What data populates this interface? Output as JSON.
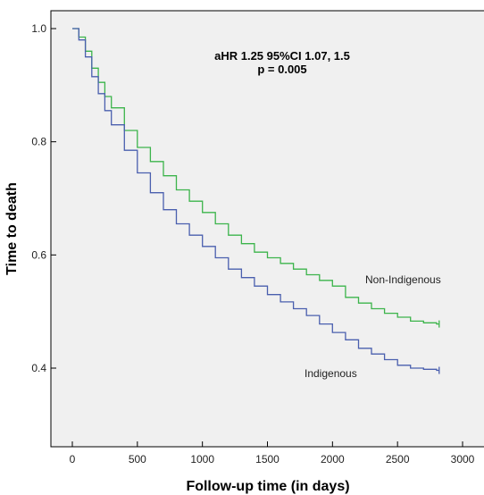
{
  "chart_data": {
    "type": "line",
    "title": "",
    "xlabel": "Follow-up time (in days)",
    "ylabel": "Time to death",
    "xlim": [
      0,
      3000
    ],
    "ylim": [
      0.3,
      1.02
    ],
    "xticks": [
      0,
      500,
      1000,
      1500,
      2000,
      2500,
      3000
    ],
    "yticks": [
      0.4,
      0.6,
      0.8,
      1.0
    ],
    "xtick_labels": [
      "0",
      "500",
      "1000",
      "1500",
      "2000",
      "2500",
      "3000"
    ],
    "ytick_labels": [
      "0.4",
      "0.6",
      "0.8",
      "1.0"
    ],
    "grid": false,
    "annotations": [
      "aHR 1.25 95%CI 1.07, 1.5",
      "p = 0.005"
    ],
    "series": [
      {
        "name": "Non-Indigenous",
        "color": "#3cb44b",
        "step": true,
        "x": [
          0,
          50,
          100,
          150,
          200,
          250,
          300,
          400,
          500,
          600,
          700,
          800,
          900,
          1000,
          1100,
          1200,
          1300,
          1400,
          1500,
          1600,
          1700,
          1800,
          1900,
          2000,
          2100,
          2200,
          2300,
          2400,
          2500,
          2600,
          2700,
          2800
        ],
        "y": [
          1.0,
          0.985,
          0.96,
          0.93,
          0.905,
          0.88,
          0.86,
          0.82,
          0.79,
          0.765,
          0.74,
          0.715,
          0.695,
          0.675,
          0.655,
          0.635,
          0.62,
          0.605,
          0.595,
          0.585,
          0.575,
          0.565,
          0.555,
          0.545,
          0.525,
          0.515,
          0.505,
          0.497,
          0.49,
          0.483,
          0.48,
          0.478
        ]
      },
      {
        "name": "Indigenous",
        "color": "#4a5fae",
        "step": true,
        "x": [
          0,
          50,
          100,
          150,
          200,
          250,
          300,
          400,
          500,
          600,
          700,
          800,
          900,
          1000,
          1100,
          1200,
          1300,
          1400,
          1500,
          1600,
          1700,
          1800,
          1900,
          2000,
          2100,
          2200,
          2300,
          2400,
          2500,
          2600,
          2700,
          2800
        ],
        "y": [
          1.0,
          0.98,
          0.95,
          0.915,
          0.885,
          0.855,
          0.83,
          0.785,
          0.745,
          0.71,
          0.68,
          0.655,
          0.635,
          0.615,
          0.595,
          0.575,
          0.56,
          0.545,
          0.53,
          0.517,
          0.505,
          0.493,
          0.478,
          0.463,
          0.45,
          0.435,
          0.425,
          0.415,
          0.405,
          0.4,
          0.398,
          0.396
        ]
      }
    ]
  }
}
